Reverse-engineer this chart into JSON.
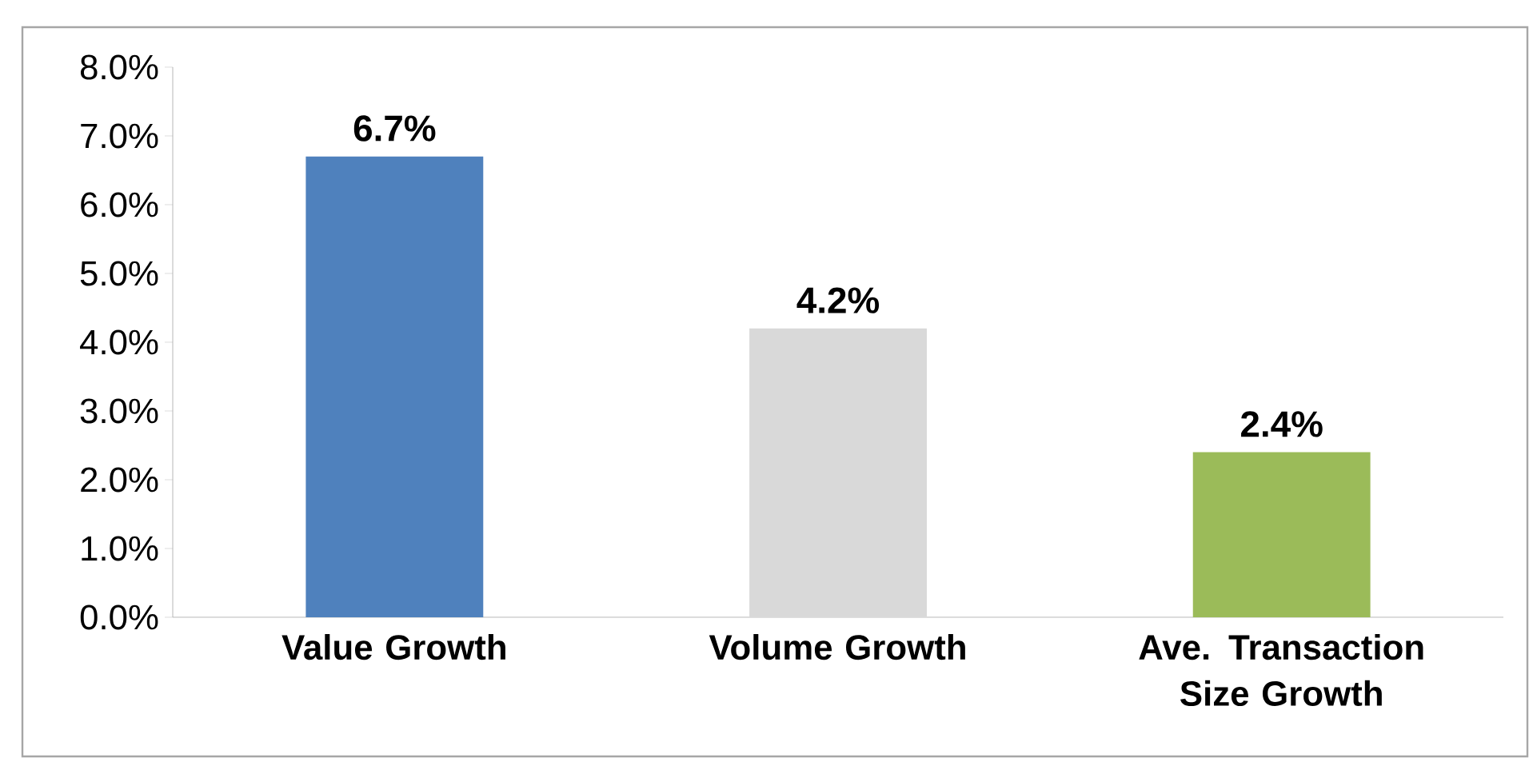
{
  "chart_data": {
    "type": "bar",
    "categories": [
      "Value Growth",
      "Volume Growth",
      "Ave. Transaction Size Growth"
    ],
    "values": [
      6.7,
      4.2,
      2.4
    ],
    "colors": [
      "#4f81bd",
      "#d9d9d9",
      "#9bbb59"
    ],
    "value_labels": [
      "6.7%",
      "4.2%",
      "2.4%"
    ],
    "ylim": [
      0,
      8
    ],
    "yticks": [
      {
        "value": 0,
        "label": "0.0%"
      },
      {
        "value": 1,
        "label": "1.0%"
      },
      {
        "value": 2,
        "label": "2.0%"
      },
      {
        "value": 3,
        "label": "3.0%"
      },
      {
        "value": 4,
        "label": "4.0%"
      },
      {
        "value": 5,
        "label": "5.0%"
      },
      {
        "value": 6,
        "label": "6.0%"
      },
      {
        "value": 7,
        "label": "7.0%"
      },
      {
        "value": 8,
        "label": "8.0%"
      }
    ],
    "grid": false
  }
}
